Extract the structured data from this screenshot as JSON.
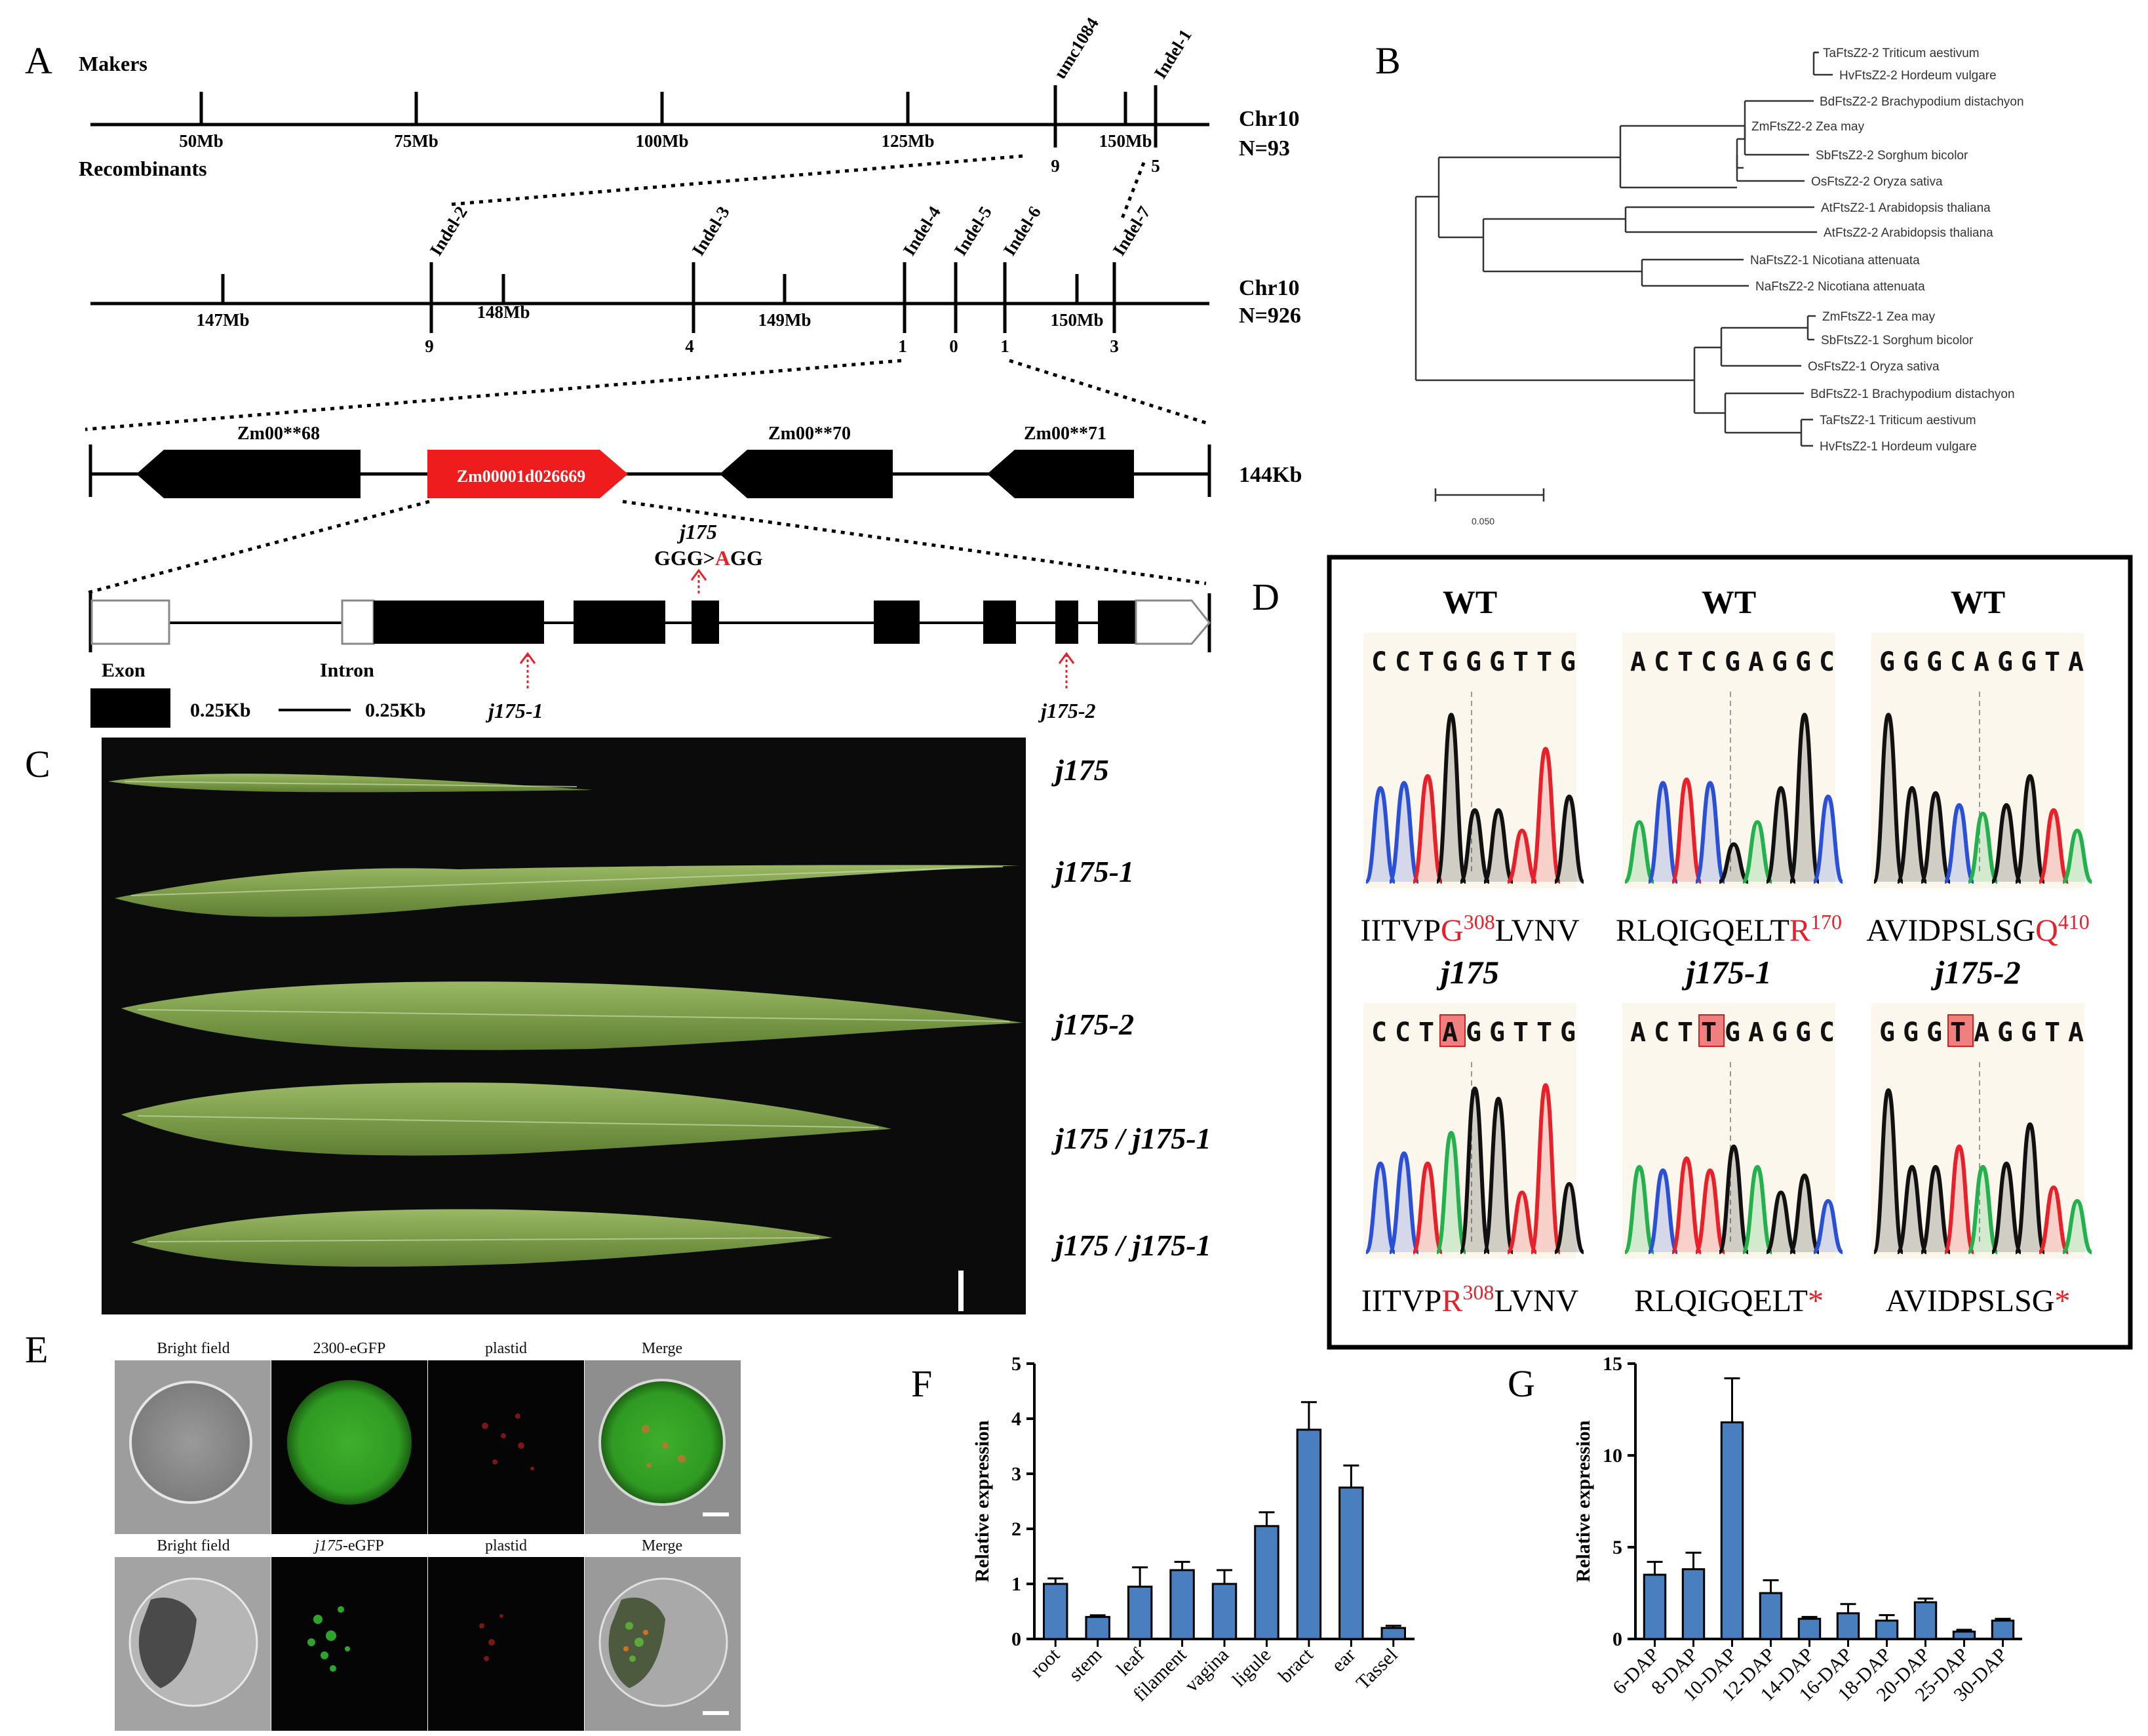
{
  "panel_labels": {
    "a": "A",
    "b": "B",
    "c": "C",
    "d": "D",
    "e": "E",
    "f": "F",
    "g": "G"
  },
  "panelA": {
    "makers_label": "Makers",
    "recombinants_label": "Recombinants",
    "top_chr": "Chr10",
    "top_n": "N=93",
    "top_ticks": [
      "50Mb",
      "75Mb",
      "100Mb",
      "125Mb",
      "150Mb"
    ],
    "top_markers": [
      "umc1084",
      "Indel-1"
    ],
    "top_recomb": [
      "9",
      "5"
    ],
    "mid_chr": "Chr10",
    "mid_n": "N=926",
    "mid_ticks": [
      "147Mb",
      "148Mb",
      "149Mb",
      "150Mb"
    ],
    "mid_markers": [
      "Indel-2",
      "Indel-3",
      "Indel-4",
      "Indel-5",
      "Indel-6",
      "Indel-7"
    ],
    "mid_recomb": [
      "9",
      "4",
      "1",
      "0",
      "1",
      "3"
    ],
    "genes": [
      "Zm00**68",
      "Zm00001d026669",
      "Zm00**70",
      "Zm00**71"
    ],
    "region_size": "144Kb",
    "mutation_name": "j175",
    "mutation_pre": "GGG>",
    "mutation_alt": "A",
    "mutation_post": "GG",
    "alleles": [
      "j175-1",
      "j175-2"
    ],
    "legend": {
      "exon": "Exon",
      "intron": "Intron",
      "exon_scale": "0.25Kb",
      "intron_scale": "0.25Kb"
    },
    "colors": {
      "target_gene": "#ee1c1c",
      "gene": "#000000",
      "arrow": "#e8202a"
    }
  },
  "panelB": {
    "taxa": [
      "TaFtsZ2-2 Triticum aestivum",
      "HvFtsZ2-2 Hordeum vulgare",
      "BdFtsZ2-2 Brachypodium distachyon",
      "ZmFtsZ2-2 Zea may",
      "SbFtsZ2-2 Sorghum bicolor",
      "OsFtsZ2-2 Oryza sativa",
      "AtFtsZ2-1 Arabidopsis thaliana",
      "AtFtsZ2-2 Arabidopsis thaliana",
      "NaFtsZ2-1 Nicotiana attenuata",
      "NaFtsZ2-2 Nicotiana attenuata",
      "ZmFtsZ2-1 Zea may",
      "SbFtsZ2-1 Sorghum bicolor",
      "OsFtsZ2-1 Oryza sativa",
      "BdFtsZ2-1 Brachypodium distachyon",
      "TaFtsZ2-1 Triticum aestivum",
      "HvFtsZ2-1 Hordeum vulgare"
    ],
    "scale_label": "0.050"
  },
  "panelC": {
    "labels": [
      "j175",
      "j175-1",
      "j175-2",
      "j175 / j175-1",
      "j175 / j175-1"
    ],
    "colors": {
      "background": "#0b0b0b",
      "leaf": "#7f9f4d"
    }
  },
  "panelD": {
    "top_titles": [
      "WT",
      "WT",
      "WT"
    ],
    "bottom_titles": [
      "j175",
      "j175-1",
      "j175-2"
    ],
    "top_seqs": [
      "CCTGGGTTG",
      "ACTCGAGGC",
      "GGGCAGGTA"
    ],
    "bottom_seq_parts": [
      {
        "pre": "CCT",
        "hl": "A",
        "post": "GGTTG"
      },
      {
        "pre": "ACT",
        "hl": "T",
        "post": "GAGGC"
      },
      {
        "pre": "GGG",
        "hl": "T",
        "post": "AGGTA"
      }
    ],
    "top_prot": [
      {
        "pre": "IITVP",
        "red": "G",
        "sup": "308",
        "post": "LVNV"
      },
      {
        "pre": "RLQIGQELT",
        "red": "R",
        "sup": "170",
        "post": ""
      },
      {
        "pre": "AVIDPSLSG",
        "red": "Q",
        "sup": "410",
        "post": ""
      }
    ],
    "bottom_prot": [
      {
        "pre": "IITVP",
        "red": "R",
        "sup": "308",
        "post": "LVNV"
      },
      {
        "pre": "RLQIGQELT",
        "red": "*",
        "sup": "",
        "post": ""
      },
      {
        "pre": "AVIDPSLSG",
        "red": "*",
        "sup": "",
        "post": ""
      }
    ],
    "colors": {
      "A": "#22b14c",
      "C": "#2b50d8",
      "G": "#111111",
      "T": "#e8202a",
      "highlight": "#f08080",
      "panel_bg": "#fbf7ec"
    }
  },
  "panelE": {
    "headers_row1": [
      "Bright field",
      "2300-eGFP",
      "plastid",
      "Merge"
    ],
    "headers_row2": [
      "Bright field",
      "j175",
      "-eGFP",
      "plastid",
      "Merge"
    ]
  },
  "chart_data": [
    {
      "type": "bar",
      "panel": "F",
      "ylabel": "Relative expression",
      "ylim": [
        0,
        5
      ],
      "yticks": [
        0,
        1,
        2,
        3,
        4,
        5
      ],
      "categories": [
        "root",
        "stem",
        "leaf",
        "filament",
        "vagina",
        "ligule",
        "bract",
        "ear",
        "Tassel"
      ],
      "values": [
        1.0,
        0.4,
        0.95,
        1.25,
        1.0,
        2.05,
        3.8,
        2.75,
        0.2
      ],
      "errors": [
        0.1,
        0.03,
        0.35,
        0.15,
        0.25,
        0.25,
        0.5,
        0.4,
        0.04
      ],
      "bar_color": "#4a7fbf"
    },
    {
      "type": "bar",
      "panel": "G",
      "ylabel": "Relative expression",
      "ylim": [
        0,
        15
      ],
      "yticks": [
        0,
        5,
        10,
        15
      ],
      "categories": [
        "6-DAP",
        "8-DAP",
        "10-DAP",
        "12-DAP",
        "14-DAP",
        "16-DAP",
        "18-DAP",
        "20-DAP",
        "25-DAP",
        "30-DAP"
      ],
      "values": [
        3.5,
        3.8,
        11.8,
        2.5,
        1.1,
        1.4,
        1.0,
        2.0,
        0.4,
        1.0
      ],
      "errors": [
        0.7,
        0.9,
        2.4,
        0.7,
        0.1,
        0.5,
        0.3,
        0.2,
        0.1,
        0.1
      ],
      "bar_color": "#4a7fbf"
    }
  ]
}
